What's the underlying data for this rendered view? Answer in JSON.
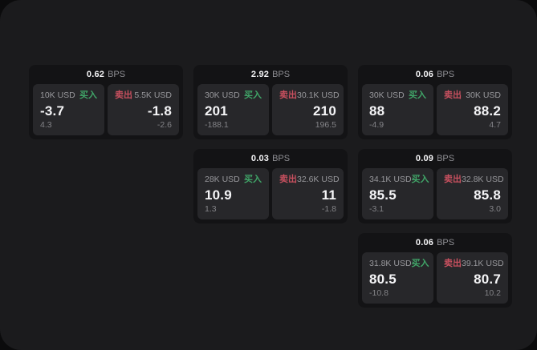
{
  "colors": {
    "background": "#0b0b0c",
    "panel": "#1b1b1d",
    "card": "#131315",
    "pane": "#27272a",
    "text_primary": "#f5f5f7",
    "text_secondary": "#98989c",
    "buy_green": "#40a568",
    "sell_red": "#c8505f"
  },
  "cards": [
    {
      "bps_value": "0.62",
      "bps_unit": "BPS",
      "buy": {
        "amount": "10K USD",
        "side_label": "买入",
        "price": "-3.7",
        "delta": "4.3"
      },
      "sell": {
        "side_label": "卖出",
        "amount": "5.5K USD",
        "price": "-1.8",
        "delta": "-2.6"
      }
    },
    {
      "bps_value": "2.92",
      "bps_unit": "BPS",
      "buy": {
        "amount": "30K USD",
        "side_label": "买入",
        "price": "201",
        "delta": "-188.1"
      },
      "sell": {
        "side_label": "卖出",
        "amount": "30.1K USD",
        "price": "210",
        "delta": "196.5"
      }
    },
    {
      "bps_value": "0.06",
      "bps_unit": "BPS",
      "buy": {
        "amount": "30K USD",
        "side_label": "买入",
        "price": "88",
        "delta": "-4.9"
      },
      "sell": {
        "side_label": "卖出",
        "amount": "30K USD",
        "price": "88.2",
        "delta": "4.7"
      }
    },
    {
      "bps_value": "0.03",
      "bps_unit": "BPS",
      "buy": {
        "amount": "28K USD",
        "side_label": "买入",
        "price": "10.9",
        "delta": "1.3"
      },
      "sell": {
        "side_label": "卖出",
        "amount": "32.6K USD",
        "price": "11",
        "delta": "-1.8"
      }
    },
    {
      "bps_value": "0.09",
      "bps_unit": "BPS",
      "buy": {
        "amount": "34.1K USD",
        "side_label": "买入",
        "price": "85.5",
        "delta": "-3.1"
      },
      "sell": {
        "side_label": "卖出",
        "amount": "32.8K USD",
        "price": "85.8",
        "delta": "3.0"
      }
    },
    {
      "bps_value": "0.06",
      "bps_unit": "BPS",
      "buy": {
        "amount": "31.8K USD",
        "side_label": "买入",
        "price": "80.5",
        "delta": "-10.8"
      },
      "sell": {
        "side_label": "卖出",
        "amount": "39.1K USD",
        "price": "80.7",
        "delta": "10.2"
      }
    }
  ]
}
